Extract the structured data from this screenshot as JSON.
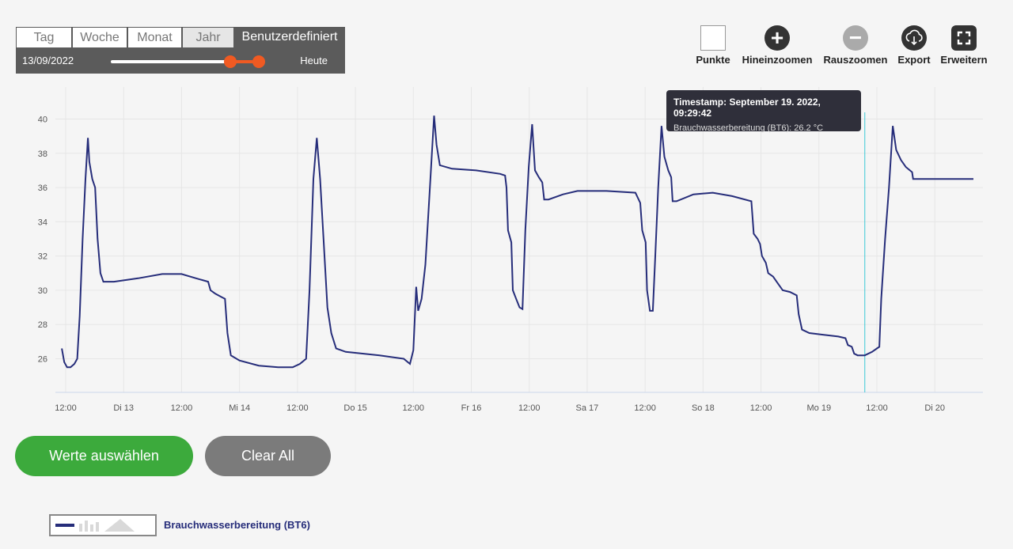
{
  "range": {
    "tabs": [
      "Tag",
      "Woche",
      "Monat",
      "Jahr"
    ],
    "active_tab": "Benutzerdefiniert",
    "start_date": "13/09/2022",
    "end_label": "Heute"
  },
  "toolbar": {
    "points": "Punkte",
    "zoom_in": "Hineinzoomen",
    "zoom_out": "Rauszoomen",
    "export": "Export",
    "expand": "Erweitern",
    "zoom_in_symbol": "+",
    "zoom_out_symbol": "−"
  },
  "tooltip": {
    "title": "Timestamp: September 19. 2022, 09:29:42",
    "value_line": "Brauchwasserbereitung (BT6): 26.2 °C"
  },
  "buttons": {
    "select_values": "Werte auswählen",
    "clear_all": "Clear All"
  },
  "legend": {
    "series_label": "Brauchwasserbereitung (BT6)"
  },
  "chart_data": {
    "type": "line",
    "title": "",
    "xlabel": "",
    "ylabel": "",
    "y_ticks": [
      26,
      28,
      30,
      32,
      34,
      36,
      38,
      40
    ],
    "ylim": [
      24.7,
      41.6
    ],
    "x_range_hours": [
      -1.0,
      188.0
    ],
    "x_ticks": [
      {
        "t": 0,
        "label": "12:00"
      },
      {
        "t": 12,
        "label": "Di 13"
      },
      {
        "t": 24,
        "label": "12:00"
      },
      {
        "t": 36,
        "label": "Mi 14"
      },
      {
        "t": 48,
        "label": "12:00"
      },
      {
        "t": 60,
        "label": "Do 15"
      },
      {
        "t": 72,
        "label": "12:00"
      },
      {
        "t": 84,
        "label": "Fr 16"
      },
      {
        "t": 96,
        "label": "12:00"
      },
      {
        "t": 108,
        "label": "Sa 17"
      },
      {
        "t": 120,
        "label": "12:00"
      },
      {
        "t": 132,
        "label": "So 18"
      },
      {
        "t": 144,
        "label": "12:00"
      },
      {
        "t": 156,
        "label": "Mo 19"
      },
      {
        "t": 168,
        "label": "12:00"
      },
      {
        "t": 180,
        "label": "Di 20"
      }
    ],
    "crosshair_t": 165.5,
    "series": [
      {
        "name": "Brauchwasserbereitung (BT6)",
        "color": "#262d7a",
        "points": [
          [
            -0.8,
            26.6
          ],
          [
            -0.3,
            25.8
          ],
          [
            0.3,
            25.5
          ],
          [
            1.0,
            25.5
          ],
          [
            1.8,
            25.7
          ],
          [
            2.4,
            26.0
          ],
          [
            2.9,
            28.5
          ],
          [
            3.5,
            33.0
          ],
          [
            4.1,
            36.5
          ],
          [
            4.6,
            38.9
          ],
          [
            4.9,
            37.5
          ],
          [
            5.5,
            36.5
          ],
          [
            6.1,
            36.0
          ],
          [
            6.6,
            33.0
          ],
          [
            7.2,
            31.0
          ],
          [
            7.8,
            30.5
          ],
          [
            10.0,
            30.5
          ],
          [
            15.0,
            30.7
          ],
          [
            20.0,
            30.95
          ],
          [
            24.0,
            30.95
          ],
          [
            27.0,
            30.7
          ],
          [
            29.5,
            30.5
          ],
          [
            30.0,
            30.0
          ],
          [
            31.0,
            29.8
          ],
          [
            32.3,
            29.6
          ],
          [
            33.0,
            29.5
          ],
          [
            33.5,
            27.5
          ],
          [
            34.2,
            26.2
          ],
          [
            36.0,
            25.9
          ],
          [
            40.0,
            25.6
          ],
          [
            44.0,
            25.5
          ],
          [
            47.0,
            25.5
          ],
          [
            48.5,
            25.7
          ],
          [
            49.8,
            26.0
          ],
          [
            50.5,
            30.0
          ],
          [
            51.3,
            36.5
          ],
          [
            52.0,
            38.9
          ],
          [
            52.7,
            36.5
          ],
          [
            53.4,
            33.0
          ],
          [
            54.2,
            29.0
          ],
          [
            55.0,
            27.5
          ],
          [
            56.0,
            26.6
          ],
          [
            58.0,
            26.4
          ],
          [
            65.0,
            26.2
          ],
          [
            70.0,
            26.0
          ],
          [
            71.3,
            25.7
          ],
          [
            72.0,
            26.5
          ],
          [
            72.6,
            30.2
          ],
          [
            73.0,
            28.8
          ],
          [
            73.7,
            29.5
          ],
          [
            74.5,
            31.5
          ],
          [
            75.5,
            36.3
          ],
          [
            76.3,
            40.2
          ],
          [
            76.8,
            38.5
          ],
          [
            77.5,
            37.3
          ],
          [
            80.0,
            37.1
          ],
          [
            85.0,
            37.0
          ],
          [
            90.0,
            36.8
          ],
          [
            91.0,
            36.7
          ],
          [
            91.3,
            36.0
          ],
          [
            91.6,
            33.5
          ],
          [
            92.3,
            32.8
          ],
          [
            92.6,
            30.0
          ],
          [
            93.3,
            29.5
          ],
          [
            94.0,
            29.0
          ],
          [
            94.6,
            28.9
          ],
          [
            95.2,
            33.5
          ],
          [
            95.9,
            37.2
          ],
          [
            96.6,
            39.7
          ],
          [
            97.2,
            37.0
          ],
          [
            98.0,
            36.6
          ],
          [
            98.7,
            36.3
          ],
          [
            99.1,
            35.3
          ],
          [
            100.0,
            35.3
          ],
          [
            103.0,
            35.6
          ],
          [
            106.0,
            35.8
          ],
          [
            112.0,
            35.8
          ],
          [
            118.0,
            35.7
          ],
          [
            119.0,
            35.1
          ],
          [
            119.4,
            33.5
          ],
          [
            120.1,
            32.8
          ],
          [
            120.4,
            30.0
          ],
          [
            121.0,
            28.8
          ],
          [
            121.6,
            28.8
          ],
          [
            122.1,
            32.0
          ],
          [
            122.7,
            35.9
          ],
          [
            123.4,
            39.6
          ],
          [
            124.0,
            37.8
          ],
          [
            124.8,
            37.0
          ],
          [
            125.4,
            36.6
          ],
          [
            125.7,
            35.2
          ],
          [
            126.5,
            35.2
          ],
          [
            130.0,
            35.6
          ],
          [
            134.0,
            35.7
          ],
          [
            138.0,
            35.5
          ],
          [
            142.0,
            35.2
          ],
          [
            142.5,
            33.3
          ],
          [
            143.3,
            33.0
          ],
          [
            143.8,
            32.7
          ],
          [
            144.2,
            32.0
          ],
          [
            145.0,
            31.6
          ],
          [
            145.5,
            31.0
          ],
          [
            146.5,
            30.8
          ],
          [
            147.5,
            30.4
          ],
          [
            148.5,
            30.0
          ],
          [
            150.0,
            29.9
          ],
          [
            151.4,
            29.7
          ],
          [
            151.8,
            28.6
          ],
          [
            152.5,
            27.7
          ],
          [
            154.0,
            27.5
          ],
          [
            157.0,
            27.4
          ],
          [
            160.0,
            27.3
          ],
          [
            161.5,
            27.2
          ],
          [
            162.0,
            26.8
          ],
          [
            162.8,
            26.7
          ],
          [
            163.3,
            26.3
          ],
          [
            164.0,
            26.2
          ],
          [
            165.5,
            26.2
          ],
          [
            167.0,
            26.4
          ],
          [
            168.0,
            26.6
          ],
          [
            168.5,
            26.7
          ],
          [
            168.9,
            29.5
          ],
          [
            169.7,
            33.0
          ],
          [
            170.5,
            36.0
          ],
          [
            171.3,
            39.6
          ],
          [
            172.0,
            38.2
          ],
          [
            173.0,
            37.6
          ],
          [
            174.0,
            37.2
          ],
          [
            175.3,
            36.9
          ],
          [
            175.5,
            36.5
          ],
          [
            180.0,
            36.5
          ],
          [
            188.0,
            36.5
          ]
        ]
      }
    ]
  }
}
